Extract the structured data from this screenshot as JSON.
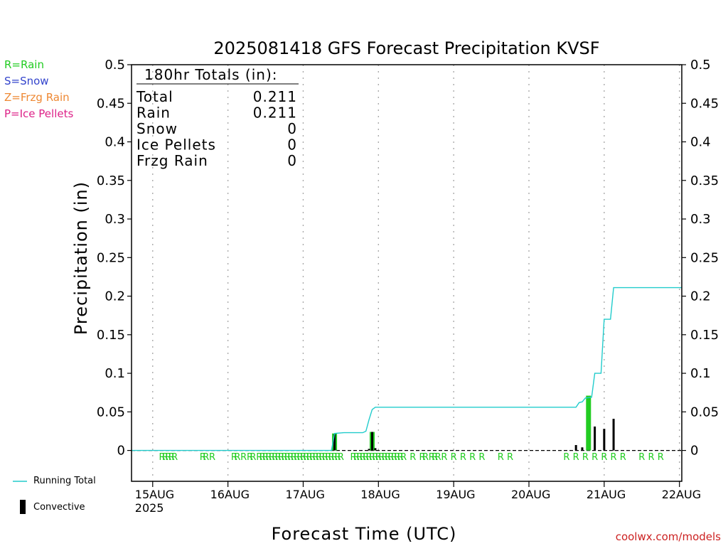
{
  "legend_left": [
    {
      "label": "R=Rain",
      "color": "#22cc22"
    },
    {
      "label": "S=Snow",
      "color": "#3344cc"
    },
    {
      "label": "Z=Frzg Rain",
      "color": "#ee8833"
    },
    {
      "label": "P=Ice Pellets",
      "color": "#dd2288"
    }
  ],
  "totals_box": {
    "heading": "180hr Totals (in):",
    "rows": [
      {
        "label": "Total",
        "value": "0.211"
      },
      {
        "label": "Rain",
        "value": "0.211"
      },
      {
        "label": "Snow",
        "value": "0"
      },
      {
        "label": "Ice Pellets",
        "value": "0"
      },
      {
        "label": "Frzg Rain",
        "value": "0"
      }
    ]
  },
  "bottom_legend": {
    "running_total": "Running Total",
    "convective": "Convective"
  },
  "credit": "coolwx.com/models",
  "colors": {
    "running_total": "#22cccc",
    "total_bar": "#22cc22",
    "convective_bar": "#000000",
    "ptype_text": "#22cc22"
  },
  "chart_data": {
    "type": "bar",
    "title": "2025081418 GFS Forecast Precipitation KVSF",
    "xlabel": "Forecast Time (UTC)",
    "ylabel": "Precipitation (in)",
    "ylim": [
      -0.04,
      0.5
    ],
    "xlim_hours": [
      -0.75,
      174.75
    ],
    "yticks": [
      "0",
      "0.05",
      "0.1",
      "0.15",
      "0.2",
      "0.25",
      "0.3",
      "0.35",
      "0.4",
      "0.45",
      "0.5"
    ],
    "xticks": [
      {
        "label": "15AUG",
        "sub": "2025",
        "hour": 6
      },
      {
        "label": "16AUG",
        "sub": "",
        "hour": 30
      },
      {
        "label": "17AUG",
        "sub": "",
        "hour": 54
      },
      {
        "label": "18AUG",
        "sub": "",
        "hour": 78
      },
      {
        "label": "19AUG",
        "sub": "",
        "hour": 102
      },
      {
        "label": "20AUG",
        "sub": "",
        "hour": 126
      },
      {
        "label": "21AUG",
        "sub": "",
        "hour": 150
      },
      {
        "label": "22AUG",
        "sub": "",
        "hour": 174
      }
    ],
    "series": [
      {
        "name": "Running Total",
        "type": "line",
        "points": [
          [
            -0.75,
            0
          ],
          [
            63,
            0
          ],
          [
            64,
            0.022
          ],
          [
            67,
            0.023
          ],
          [
            73,
            0.023
          ],
          [
            74,
            0.025
          ],
          [
            75,
            0.04
          ],
          [
            76,
            0.053
          ],
          [
            77,
            0.056
          ],
          [
            141,
            0.056
          ],
          [
            142,
            0.062
          ],
          [
            143,
            0.063
          ],
          [
            144,
            0.068
          ],
          [
            146,
            0.069
          ],
          [
            147,
            0.1
          ],
          [
            149,
            0.1
          ],
          [
            150,
            0.17
          ],
          [
            152,
            0.17
          ],
          [
            153,
            0.211
          ],
          [
            174.75,
            0.211
          ]
        ]
      },
      {
        "name": "Total",
        "type": "bar",
        "points": [
          [
            64,
            0.022
          ],
          [
            76,
            0.024
          ],
          [
            145,
            0.071
          ]
        ]
      },
      {
        "name": "Convective",
        "type": "bar",
        "points": [
          [
            64,
            0.021
          ],
          [
            75,
            0.002
          ],
          [
            76,
            0.024
          ],
          [
            77,
            0.003
          ],
          [
            141,
            0.007
          ],
          [
            143,
            0.004
          ],
          [
            147,
            0.031
          ],
          [
            150,
            0.028
          ],
          [
            153,
            0.041
          ]
        ]
      }
    ],
    "precip_type_marks": [
      {
        "hour": 9,
        "text": "R"
      },
      {
        "hour": 10,
        "text": "R"
      },
      {
        "hour": 11,
        "text": "R"
      },
      {
        "hour": 12,
        "text": "R"
      },
      {
        "hour": 13,
        "text": "R"
      },
      {
        "hour": 22,
        "text": "R"
      },
      {
        "hour": 23,
        "text": "R"
      },
      {
        "hour": 25,
        "text": "R"
      },
      {
        "hour": 32,
        "text": "R"
      },
      {
        "hour": 33,
        "text": "R"
      },
      {
        "hour": 35,
        "text": "R"
      },
      {
        "hour": 37,
        "text": "R"
      },
      {
        "hour": 38,
        "text": "R"
      },
      {
        "hour": 40,
        "text": "R"
      },
      {
        "hour": 41,
        "text": "R"
      },
      {
        "hour": 42,
        "text": "R"
      },
      {
        "hour": 43,
        "text": "R"
      },
      {
        "hour": 44,
        "text": "R"
      },
      {
        "hour": 45,
        "text": "R"
      },
      {
        "hour": 46,
        "text": "R"
      },
      {
        "hour": 47,
        "text": "R"
      },
      {
        "hour": 48,
        "text": "R"
      },
      {
        "hour": 49,
        "text": "R"
      },
      {
        "hour": 50,
        "text": "R"
      },
      {
        "hour": 51,
        "text": "R"
      },
      {
        "hour": 52,
        "text": "R"
      },
      {
        "hour": 53,
        "text": "R"
      },
      {
        "hour": 54,
        "text": "R"
      },
      {
        "hour": 55,
        "text": "R"
      },
      {
        "hour": 56,
        "text": "R"
      },
      {
        "hour": 57,
        "text": "R"
      },
      {
        "hour": 58,
        "text": "R"
      },
      {
        "hour": 59,
        "text": "R"
      },
      {
        "hour": 60,
        "text": "R"
      },
      {
        "hour": 61,
        "text": "R"
      },
      {
        "hour": 62,
        "text": "R"
      },
      {
        "hour": 63,
        "text": "R"
      },
      {
        "hour": 64,
        "text": "R"
      },
      {
        "hour": 65,
        "text": "R"
      },
      {
        "hour": 66,
        "text": "R"
      },
      {
        "hour": 70,
        "text": "R"
      },
      {
        "hour": 71,
        "text": "R"
      },
      {
        "hour": 72,
        "text": "R"
      },
      {
        "hour": 73,
        "text": "R"
      },
      {
        "hour": 74,
        "text": "R"
      },
      {
        "hour": 75,
        "text": "R"
      },
      {
        "hour": 76,
        "text": "R"
      },
      {
        "hour": 77,
        "text": "R"
      },
      {
        "hour": 78,
        "text": "R"
      },
      {
        "hour": 79,
        "text": "R"
      },
      {
        "hour": 80,
        "text": "R"
      },
      {
        "hour": 81,
        "text": "R"
      },
      {
        "hour": 82,
        "text": "R"
      },
      {
        "hour": 83,
        "text": "R"
      },
      {
        "hour": 84,
        "text": "R"
      },
      {
        "hour": 85,
        "text": "R"
      },
      {
        "hour": 86,
        "text": "R"
      },
      {
        "hour": 89,
        "text": "R"
      },
      {
        "hour": 92,
        "text": "R"
      },
      {
        "hour": 93,
        "text": "R"
      },
      {
        "hour": 95,
        "text": "R"
      },
      {
        "hour": 96,
        "text": "R"
      },
      {
        "hour": 97,
        "text": "R"
      },
      {
        "hour": 99,
        "text": "R"
      },
      {
        "hour": 102,
        "text": "R"
      },
      {
        "hour": 105,
        "text": "R"
      },
      {
        "hour": 108,
        "text": "R"
      },
      {
        "hour": 111,
        "text": "R"
      },
      {
        "hour": 117,
        "text": "R"
      },
      {
        "hour": 120,
        "text": "R"
      },
      {
        "hour": 138,
        "text": "R"
      },
      {
        "hour": 141,
        "text": "R"
      },
      {
        "hour": 144,
        "text": "R"
      },
      {
        "hour": 147,
        "text": "R"
      },
      {
        "hour": 150,
        "text": "R"
      },
      {
        "hour": 153,
        "text": "R"
      },
      {
        "hour": 156,
        "text": "R"
      },
      {
        "hour": 162,
        "text": "R"
      },
      {
        "hour": 165,
        "text": "R"
      },
      {
        "hour": 168,
        "text": "R"
      }
    ]
  }
}
